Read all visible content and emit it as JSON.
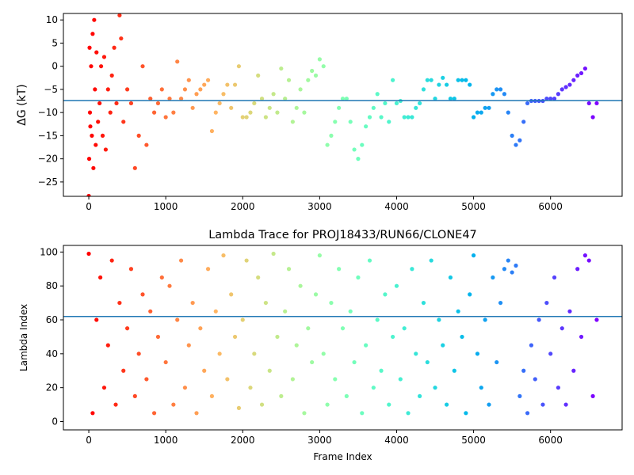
{
  "chart_data": [
    {
      "type": "scatter",
      "ylabel": "ΔG (kT)",
      "colormap": "rainbow_r",
      "hline": -7.4,
      "hline_color": "#1f77b4",
      "xlim": [
        -330,
        6930
      ],
      "ylim": [
        -28.1,
        11.4
      ],
      "xticks": [
        0,
        1000,
        2000,
        3000,
        4000,
        5000,
        6000
      ],
      "yticks": [
        {
          "value": -25,
          "label": "−25"
        },
        {
          "value": -20,
          "label": "−20"
        },
        {
          "value": -15,
          "label": "−15"
        },
        {
          "value": -10,
          "label": "−10"
        },
        {
          "value": -5,
          "label": "−5"
        },
        0,
        5,
        10
      ],
      "x": [
        0,
        5,
        10,
        15,
        20,
        30,
        40,
        50,
        60,
        70,
        80,
        90,
        100,
        120,
        140,
        160,
        180,
        200,
        220,
        250,
        280,
        300,
        330,
        360,
        400,
        420,
        450,
        500,
        550,
        600,
        650,
        700,
        750,
        800,
        850,
        900,
        950,
        1000,
        1050,
        1100,
        1150,
        1200,
        1250,
        1300,
        1350,
        1400,
        1450,
        1500,
        1550,
        1600,
        1650,
        1700,
        1750,
        1800,
        1850,
        1900,
        1950,
        2000,
        2050,
        2100,
        2150,
        2200,
        2250,
        2300,
        2350,
        2400,
        2450,
        2500,
        2550,
        2600,
        2650,
        2700,
        2750,
        2800,
        2850,
        2900,
        2950,
        3000,
        3050,
        3100,
        3150,
        3200,
        3250,
        3300,
        3350,
        3400,
        3450,
        3500,
        3550,
        3600,
        3650,
        3700,
        3750,
        3800,
        3850,
        3900,
        3950,
        4000,
        4050,
        4100,
        4150,
        4200,
        4250,
        4300,
        4350,
        4400,
        4450,
        4500,
        4550,
        4600,
        4650,
        4700,
        4750,
        4800,
        4850,
        4900,
        4950,
        5000,
        5050,
        5100,
        5150,
        5200,
        5250,
        5300,
        5350,
        5400,
        5450,
        5500,
        5550,
        5600,
        5650,
        5700,
        5750,
        5800,
        5850,
        5900,
        5950,
        6000,
        6050,
        6100,
        6150,
        6200,
        6250,
        6300,
        6350,
        6400,
        6450,
        6500,
        6550,
        6600
      ],
      "values": [
        -28,
        -20,
        4,
        -10,
        -13,
        0,
        -15,
        7,
        -22,
        10,
        -5,
        -17,
        3,
        -12,
        -8,
        0,
        -15,
        2,
        -18,
        -5,
        -10,
        -2,
        4,
        -8,
        11,
        6,
        -12,
        -5,
        -8,
        -22,
        -15,
        0,
        -17,
        -7,
        -10,
        -8,
        -5,
        -11,
        -7,
        -10,
        1,
        -7,
        -5,
        -3,
        -9,
        -6,
        -5,
        -4,
        -3,
        -14,
        -10,
        -8,
        -6,
        -4,
        -9,
        -4,
        0,
        -11,
        -11,
        -10,
        -8,
        -2,
        -7,
        -11,
        -9,
        -6,
        -10,
        -0.5,
        -7,
        -3,
        -12,
        -9,
        -5,
        -10,
        -3,
        -1,
        -2,
        1.5,
        0,
        -17,
        -15,
        -12,
        -9,
        -7,
        -7,
        -12,
        -18,
        -20,
        -17,
        -13,
        -11,
        -9,
        -6,
        -11,
        -8,
        -12,
        -3,
        -8,
        -7.5,
        -11,
        -11,
        -11,
        -9,
        -8,
        -5,
        -3,
        -3,
        -7,
        -4,
        -2.5,
        -4,
        -7,
        -7,
        -3,
        -3,
        -3,
        -4,
        -11,
        -10,
        -10,
        -9,
        -9,
        -6,
        -5,
        -5,
        -6,
        -10,
        -15,
        -17,
        -16,
        -12,
        -8,
        -7.5,
        -7.5,
        -7.5,
        -7.5,
        -7,
        -7,
        -7,
        -6,
        -5,
        -4.5,
        -4,
        -3,
        -2,
        -1.5,
        -0.5,
        -8,
        -11,
        -8
      ]
    },
    {
      "type": "scatter",
      "title": "Lambda Trace for PROJ18433/RUN66/CLONE47",
      "xlabel": "Frame Index",
      "ylabel": "Lambda Index",
      "colormap": "rainbow_r",
      "hline": 62,
      "hline_color": "#1f77b4",
      "xlim": [
        -330,
        6930
      ],
      "ylim": [
        -4.9,
        103.9
      ],
      "xticks": [
        0,
        1000,
        2000,
        3000,
        4000,
        5000,
        6000
      ],
      "yticks": [
        0,
        20,
        40,
        60,
        80,
        100
      ],
      "x": [
        0,
        50,
        100,
        150,
        200,
        250,
        300,
        350,
        400,
        450,
        500,
        550,
        600,
        650,
        700,
        750,
        800,
        850,
        900,
        950,
        1000,
        1050,
        1100,
        1150,
        1200,
        1250,
        1300,
        1350,
        1400,
        1450,
        1500,
        1550,
        1600,
        1650,
        1700,
        1750,
        1800,
        1850,
        1900,
        1950,
        2000,
        2050,
        2100,
        2150,
        2200,
        2250,
        2300,
        2350,
        2400,
        2450,
        2500,
        2550,
        2600,
        2650,
        2700,
        2750,
        2800,
        2850,
        2900,
        2950,
        3000,
        3050,
        3100,
        3150,
        3200,
        3250,
        3300,
        3350,
        3400,
        3450,
        3500,
        3550,
        3600,
        3650,
        3700,
        3750,
        3800,
        3850,
        3900,
        3950,
        4000,
        4050,
        4100,
        4150,
        4200,
        4250,
        4300,
        4350,
        4400,
        4450,
        4500,
        4550,
        4600,
        4650,
        4700,
        4750,
        4800,
        4850,
        4900,
        4950,
        5000,
        5050,
        5100,
        5150,
        5200,
        5250,
        5300,
        5350,
        5400,
        5450,
        5500,
        5550,
        5600,
        5650,
        5700,
        5750,
        5800,
        5850,
        5900,
        5950,
        6000,
        6050,
        6100,
        6150,
        6200,
        6250,
        6300,
        6350,
        6400,
        6450,
        6500,
        6550,
        6600
      ],
      "values": [
        99,
        5,
        60,
        85,
        20,
        45,
        95,
        10,
        70,
        30,
        55,
        90,
        15,
        40,
        75,
        25,
        65,
        5,
        50,
        85,
        35,
        80,
        10,
        60,
        95,
        20,
        45,
        70,
        5,
        55,
        30,
        90,
        15,
        65,
        40,
        98,
        25,
        75,
        50,
        8,
        60,
        95,
        20,
        40,
        85,
        10,
        70,
        30,
        99,
        50,
        15,
        65,
        90,
        25,
        45,
        80,
        5,
        55,
        35,
        75,
        98,
        40,
        10,
        70,
        25,
        90,
        55,
        15,
        65,
        35,
        85,
        5,
        45,
        95,
        20,
        60,
        30,
        75,
        10,
        50,
        80,
        25,
        55,
        5,
        90,
        40,
        15,
        70,
        35,
        95,
        20,
        60,
        45,
        10,
        85,
        30,
        65,
        50,
        5,
        75,
        98,
        40,
        20,
        60,
        10,
        85,
        35,
        70,
        90,
        95,
        88,
        92,
        15,
        30,
        5,
        45,
        25,
        60,
        10,
        70,
        40,
        85,
        20,
        55,
        10,
        65,
        30,
        90,
        50,
        98,
        95,
        15,
        60
      ]
    }
  ]
}
